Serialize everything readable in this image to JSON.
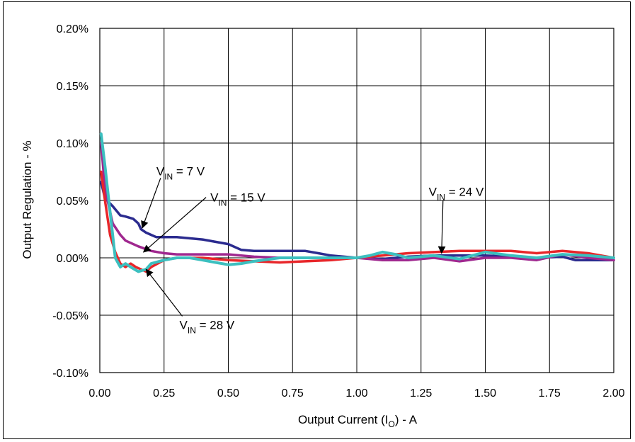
{
  "chart_data": {
    "type": "line",
    "title": "",
    "xlabel": {
      "pre": "Output Current (I",
      "sub": "O",
      "post": ") - A"
    },
    "ylabel": "Output Regulation - %",
    "xlim": [
      0,
      2.0
    ],
    "ylim": [
      -0.1,
      0.2
    ],
    "grid": true,
    "x_ticks": [
      "0.00",
      "0.25",
      "0.50",
      "0.75",
      "1.00",
      "1.25",
      "1.50",
      "1.75",
      "2.00"
    ],
    "x_tick_values": [
      0,
      0.25,
      0.5,
      0.75,
      1.0,
      1.25,
      1.5,
      1.75,
      2.0
    ],
    "y_ticks": [
      "0.20%",
      "0.15%",
      "0.10%",
      "0.05%",
      "0.00%",
      "-0.05%",
      "-0.10%"
    ],
    "y_tick_values": [
      0.2,
      0.15,
      0.1,
      0.05,
      0.0,
      -0.05,
      -0.1
    ],
    "series": [
      {
        "key": "vin7",
        "color": "#2b2b8f",
        "x": [
          0.005,
          0.02,
          0.05,
          0.08,
          0.1,
          0.13,
          0.15,
          0.16,
          0.18,
          0.2,
          0.22,
          0.3,
          0.4,
          0.5,
          0.55,
          0.6,
          0.7,
          0.8,
          0.85,
          0.9,
          1.0,
          1.1,
          1.2,
          1.3,
          1.4,
          1.5,
          1.6,
          1.7,
          1.8,
          1.85,
          1.9,
          2.0
        ],
        "y": [
          0.066,
          0.052,
          0.045,
          0.037,
          0.036,
          0.034,
          0.03,
          0.025,
          0.022,
          0.02,
          0.018,
          0.018,
          0.016,
          0.012,
          0.007,
          0.006,
          0.006,
          0.006,
          0.004,
          0.002,
          0.0,
          -0.001,
          0.001,
          0.002,
          0.002,
          0.002,
          0.001,
          0.0,
          0.001,
          -0.002,
          -0.002,
          -0.002
        ]
      },
      {
        "key": "vin15",
        "color": "#a0288f",
        "x": [
          0.005,
          0.02,
          0.05,
          0.08,
          0.1,
          0.15,
          0.2,
          0.25,
          0.3,
          0.4,
          0.5,
          0.6,
          0.7,
          0.8,
          0.9,
          1.0,
          1.1,
          1.2,
          1.3,
          1.4,
          1.5,
          1.6,
          1.7,
          1.8,
          1.9,
          2.0
        ],
        "y": [
          0.1,
          0.06,
          0.03,
          0.02,
          0.015,
          0.01,
          0.006,
          0.004,
          0.003,
          0.003,
          0.003,
          0.001,
          0.0,
          0.0,
          0.0,
          0.0,
          -0.002,
          -0.002,
          0.0,
          -0.003,
          0.0,
          0.0,
          -0.002,
          0.003,
          0.0,
          -0.002
        ]
      },
      {
        "key": "vin24",
        "color": "#e8262a",
        "x": [
          0.005,
          0.02,
          0.04,
          0.06,
          0.08,
          0.1,
          0.12,
          0.14,
          0.16,
          0.18,
          0.2,
          0.25,
          0.3,
          0.4,
          0.5,
          0.6,
          0.7,
          0.8,
          0.9,
          1.0,
          1.1,
          1.2,
          1.3,
          1.4,
          1.5,
          1.6,
          1.7,
          1.8,
          1.9,
          2.0
        ],
        "y": [
          0.075,
          0.05,
          0.02,
          0.005,
          -0.005,
          -0.008,
          -0.005,
          -0.008,
          -0.01,
          -0.012,
          -0.008,
          -0.002,
          0.0,
          0.0,
          -0.002,
          -0.003,
          -0.004,
          -0.003,
          -0.002,
          0.0,
          0.002,
          0.004,
          0.005,
          0.006,
          0.006,
          0.006,
          0.004,
          0.006,
          0.004,
          0.0
        ]
      },
      {
        "key": "vin28",
        "color": "#3cbfbf",
        "x": [
          0.005,
          0.02,
          0.04,
          0.06,
          0.08,
          0.1,
          0.12,
          0.15,
          0.18,
          0.2,
          0.25,
          0.3,
          0.35,
          0.4,
          0.45,
          0.5,
          0.55,
          0.6,
          0.7,
          0.8,
          0.9,
          1.0,
          1.05,
          1.1,
          1.15,
          1.2,
          1.3,
          1.4,
          1.5,
          1.6,
          1.7,
          1.8,
          1.9,
          2.0
        ],
        "y": [
          0.108,
          0.08,
          0.04,
          0.0,
          -0.008,
          -0.005,
          -0.008,
          -0.012,
          -0.01,
          -0.005,
          -0.002,
          0.0,
          0.0,
          -0.002,
          -0.004,
          -0.006,
          -0.005,
          -0.003,
          0.0,
          0.0,
          0.0,
          0.0,
          0.002,
          0.005,
          0.003,
          0.0,
          0.002,
          -0.001,
          0.005,
          0.002,
          0.0,
          0.003,
          0.002,
          0.0
        ]
      }
    ],
    "annotations": [
      {
        "key": "a7",
        "pre": "V",
        "sub": "IN",
        "post": " = 7 V",
        "x": 0.22,
        "y": 0.072,
        "arrow_to": [
          0.165,
          0.026
        ]
      },
      {
        "key": "a15",
        "pre": "V",
        "sub": "IN",
        "post": " = 15 V",
        "x": 0.43,
        "y": 0.049,
        "arrow_to": [
          0.17,
          0.005
        ]
      },
      {
        "key": "a24",
        "pre": "V",
        "sub": "IN",
        "post": " = 24 V",
        "x": 1.28,
        "y": 0.054,
        "arrow_to": [
          1.33,
          0.004
        ]
      },
      {
        "key": "a28",
        "pre": "V",
        "sub": "IN",
        "post": " = 28 V",
        "x": 0.31,
        "y": -0.062,
        "arrow_to": [
          0.18,
          -0.01
        ]
      }
    ]
  }
}
